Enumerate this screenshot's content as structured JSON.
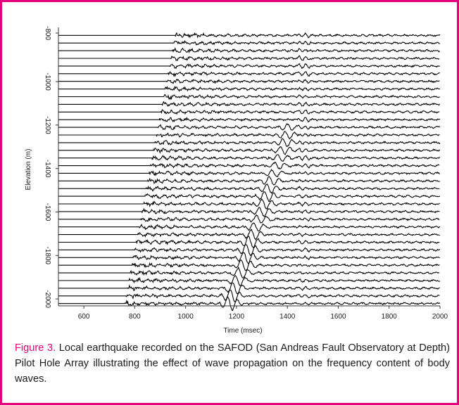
{
  "colors": {
    "frame": "#e6007e",
    "caption_number": "#e6007e",
    "trace": "#000000"
  },
  "chart_data": {
    "type": "line",
    "subtype": "seismic record section",
    "xlabel": "Time (msec)",
    "ylabel": "Elevation (m)",
    "xlim": [
      500,
      2000
    ],
    "ylim": [
      -2040,
      -860
    ],
    "x_ticks": [
      600,
      800,
      1000,
      1200,
      1400,
      1600,
      1800,
      2000
    ],
    "y_ticks": [
      -800,
      -1000,
      -1200,
      -1400,
      -1600,
      -1800,
      -2000
    ],
    "x_tick_labels": [
      "600",
      "800",
      "1000",
      "1200",
      "1400",
      "1600",
      "1800",
      "2000"
    ],
    "y_tick_labels": [
      "-800",
      "-1000",
      "-1200",
      "-1400",
      "-1600",
      "-1800",
      "-2000"
    ],
    "trace_count": 36,
    "trace_elevation_range": [
      -870,
      -2030
    ],
    "p_wave_arrival": {
      "top": {
        "elevation": -870,
        "time": 960
      },
      "bottom": {
        "elevation": -2030,
        "time": 760
      }
    },
    "s_wave_arrival": {
      "top": {
        "elevation": -1240,
        "time": 1400
      },
      "bottom": {
        "elevation": -2030,
        "time": 1155
      }
    },
    "late_phase_time": [
      1440,
      1470
    ],
    "grid": false,
    "legend": "none"
  },
  "caption": {
    "number": "Figure 3.",
    "text": " Local earthquake recorded on the SAFOD (San Andreas Fault Observatory at Depth) Pilot Hole Array illustrating the effect of wave propagation on the frequency content of body waves."
  }
}
